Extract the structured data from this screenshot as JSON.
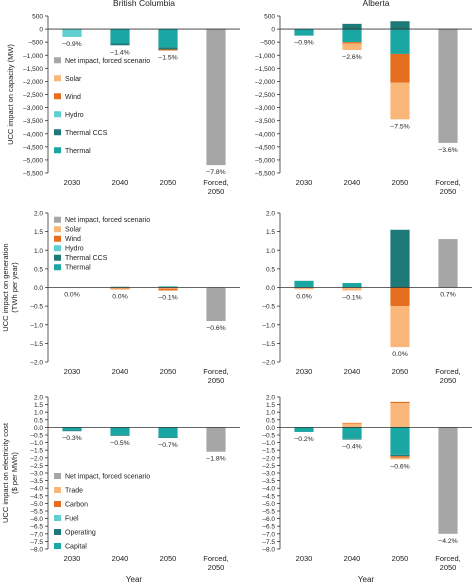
{
  "columns": [
    "British Columbia",
    "Alberta"
  ],
  "x_axis_label": "Year",
  "categories": [
    "2030",
    "2040",
    "2050",
    "Forced, 2050"
  ],
  "colors": {
    "Net impact, forced scenario": "#a6a6a6",
    "Solar": "#f9b77a",
    "Wind": "#e56f1e",
    "Hydro": "#5fcfcf",
    "Thermal CCS": "#1e7a78",
    "Thermal": "#1aa6a2",
    "Trade": "#f9b77a",
    "Carbon": "#e56f1e",
    "Fuel": "#5fcfcf",
    "Operating": "#1e7a78",
    "Capital": "#1aa6a2"
  },
  "chart_data": [
    {
      "type": "bar",
      "stacked": true,
      "row": "capacity",
      "column": "British Columbia",
      "ylabel": "UCC impact on capacity (MW)",
      "ylim": [
        -5500,
        500
      ],
      "yticks": [
        500,
        0,
        -500,
        -1000,
        -1500,
        -2000,
        -2500,
        -3000,
        -3500,
        -4000,
        -4500,
        -5000,
        -5500
      ],
      "series": [
        {
          "name": "Hydro",
          "values": [
            -300,
            0,
            0,
            0
          ]
        },
        {
          "name": "Thermal",
          "values": [
            0,
            -550,
            -700,
            0
          ]
        },
        {
          "name": "Thermal CCS",
          "values": [
            0,
            -70,
            -80,
            0
          ]
        },
        {
          "name": "Wind",
          "values": [
            0,
            0,
            -40,
            0
          ]
        },
        {
          "name": "Net impact, forced scenario",
          "values": [
            0,
            0,
            0,
            -5200
          ]
        }
      ],
      "bar_labels": [
        "−0.9%",
        "−1.4%",
        "−1.5%",
        "−7.8%"
      ],
      "legend": [
        "Net impact, forced scenario",
        "Solar",
        "Wind",
        "Hydro",
        "Thermal CCS",
        "Thermal"
      ],
      "legend_position": "left"
    },
    {
      "type": "bar",
      "stacked": true,
      "row": "capacity",
      "column": "Alberta",
      "ylabel": "",
      "ylim": [
        -5500,
        500
      ],
      "yticks": [
        500,
        0,
        -500,
        -1000,
        -1500,
        -2000,
        -2500,
        -3000,
        -3500,
        -4000,
        -4500,
        -5000,
        -5500
      ],
      "series": [
        {
          "name": "Thermal CCS",
          "values": [
            0,
            200,
            300,
            0
          ]
        },
        {
          "name": "Thermal",
          "values": [
            -250,
            -500,
            -950,
            0
          ]
        },
        {
          "name": "Wind",
          "values": [
            0,
            -50,
            -1100,
            0
          ]
        },
        {
          "name": "Solar",
          "values": [
            0,
            -250,
            -1400,
            0
          ]
        },
        {
          "name": "Net impact, forced scenario",
          "values": [
            0,
            0,
            0,
            -4350
          ]
        }
      ],
      "bar_labels": [
        "−0.9%",
        "−2.6%",
        "−7.5%",
        "−3.6%"
      ]
    },
    {
      "type": "bar",
      "stacked": true,
      "row": "generation",
      "column": "British Columbia",
      "ylabel": "UCC impact on generation (TWh per year)",
      "ylim": [
        -2.0,
        2.0
      ],
      "yticks": [
        2.0,
        1.5,
        1.0,
        0.5,
        0.0,
        -0.5,
        -1.0,
        -1.5,
        -2.0
      ],
      "series": [
        {
          "name": "Thermal",
          "values": [
            0,
            0.02,
            0.03,
            0
          ]
        },
        {
          "name": "Solar",
          "values": [
            0,
            -0.03,
            -0.03,
            0
          ]
        },
        {
          "name": "Wind",
          "values": [
            0,
            -0.02,
            -0.05,
            0
          ]
        },
        {
          "name": "Net impact, forced scenario",
          "values": [
            0,
            0,
            0,
            -0.9
          ]
        }
      ],
      "bar_labels": [
        "0.0%",
        "0.0%",
        "−0.1%",
        "−0.6%"
      ],
      "legend": [
        "Net impact, forced scenario",
        "Solar",
        "Wind",
        "Hydro",
        "Thermal CCS",
        "Thermal"
      ],
      "legend_position": "top-left"
    },
    {
      "type": "bar",
      "stacked": true,
      "row": "generation",
      "column": "Alberta",
      "ylabel": "",
      "ylim": [
        -2.0,
        2.0
      ],
      "yticks": [
        2.0,
        1.5,
        1.0,
        0.5,
        0.0,
        -0.5,
        -1.0,
        -1.5,
        -2.0
      ],
      "series": [
        {
          "name": "Thermal",
          "values": [
            0.18,
            0.12,
            0,
            0
          ]
        },
        {
          "name": "Thermal CCS",
          "values": [
            0,
            0,
            1.55,
            0
          ]
        },
        {
          "name": "Solar",
          "values": [
            -0.05,
            0,
            0,
            0
          ]
        },
        {
          "name": "Wind",
          "values": [
            0,
            0,
            -0.5,
            0
          ]
        },
        {
          "name": "Solar",
          "values": [
            0,
            -0.08,
            -1.1,
            0
          ]
        },
        {
          "name": "Net impact, forced scenario",
          "values": [
            0,
            0,
            0,
            1.3
          ]
        }
      ],
      "bar_labels": [
        "0.0%",
        "−0.1%",
        "0.0%",
        "0.7%"
      ]
    },
    {
      "type": "bar",
      "stacked": true,
      "row": "cost",
      "column": "British Columbia",
      "ylabel": "UCC impact on electricity cost ($ per MWh)",
      "ylim": [
        -8.0,
        2.0
      ],
      "yticks": [
        2.0,
        1.5,
        1.0,
        0.5,
        0.0,
        -0.5,
        -1.0,
        -1.5,
        -2.0,
        -2.5,
        -3.0,
        -3.5,
        -4.0,
        -4.5,
        -5.0,
        -5.5,
        -6.0,
        -6.5,
        -7.0,
        -7.5,
        -8.0
      ],
      "series": [
        {
          "name": "Capital",
          "values": [
            -0.2,
            -0.5,
            -0.65,
            0
          ]
        },
        {
          "name": "Operating",
          "values": [
            -0.05,
            -0.05,
            -0.05,
            0
          ]
        },
        {
          "name": "Net impact, forced scenario",
          "values": [
            0,
            0,
            0,
            -1.6
          ]
        }
      ],
      "bar_labels": [
        "−0.3%",
        "−0.5%",
        "−0.7%",
        "−1.8%"
      ],
      "legend": [
        "Net impact, forced scenario",
        "Trade",
        "Carbon",
        "Fuel",
        "Operating",
        "Capital"
      ],
      "legend_position": "bottom-left"
    },
    {
      "type": "bar",
      "stacked": true,
      "row": "cost",
      "column": "Alberta",
      "ylabel": "",
      "ylim": [
        -8.0,
        2.0
      ],
      "yticks": [
        2.0,
        1.5,
        1.0,
        0.5,
        0.0,
        -0.5,
        -1.0,
        -1.5,
        -2.0,
        -2.5,
        -3.0,
        -3.5,
        -4.0,
        -4.5,
        -5.0,
        -5.5,
        -6.0,
        -6.5,
        -7.0,
        -7.5,
        -8.0
      ],
      "series": [
        {
          "name": "Trade",
          "values": [
            0,
            0.25,
            1.6,
            0
          ]
        },
        {
          "name": "Carbon",
          "values": [
            0,
            0.05,
            0.08,
            0
          ]
        },
        {
          "name": "Capital",
          "values": [
            -0.3,
            -0.75,
            -1.8,
            0
          ]
        },
        {
          "name": "Operating",
          "values": [
            0,
            -0.05,
            -0.1,
            0
          ]
        },
        {
          "name": "Carbon",
          "values": [
            0,
            0,
            -0.1,
            0
          ]
        },
        {
          "name": "Trade",
          "values": [
            0,
            0,
            -0.1,
            0
          ]
        },
        {
          "name": "Net impact, forced scenario",
          "values": [
            0,
            0,
            0,
            -7.0
          ]
        }
      ],
      "bar_labels": [
        "−0.2%",
        "−0.4%",
        "−0.6%",
        "−4.2%"
      ]
    }
  ]
}
